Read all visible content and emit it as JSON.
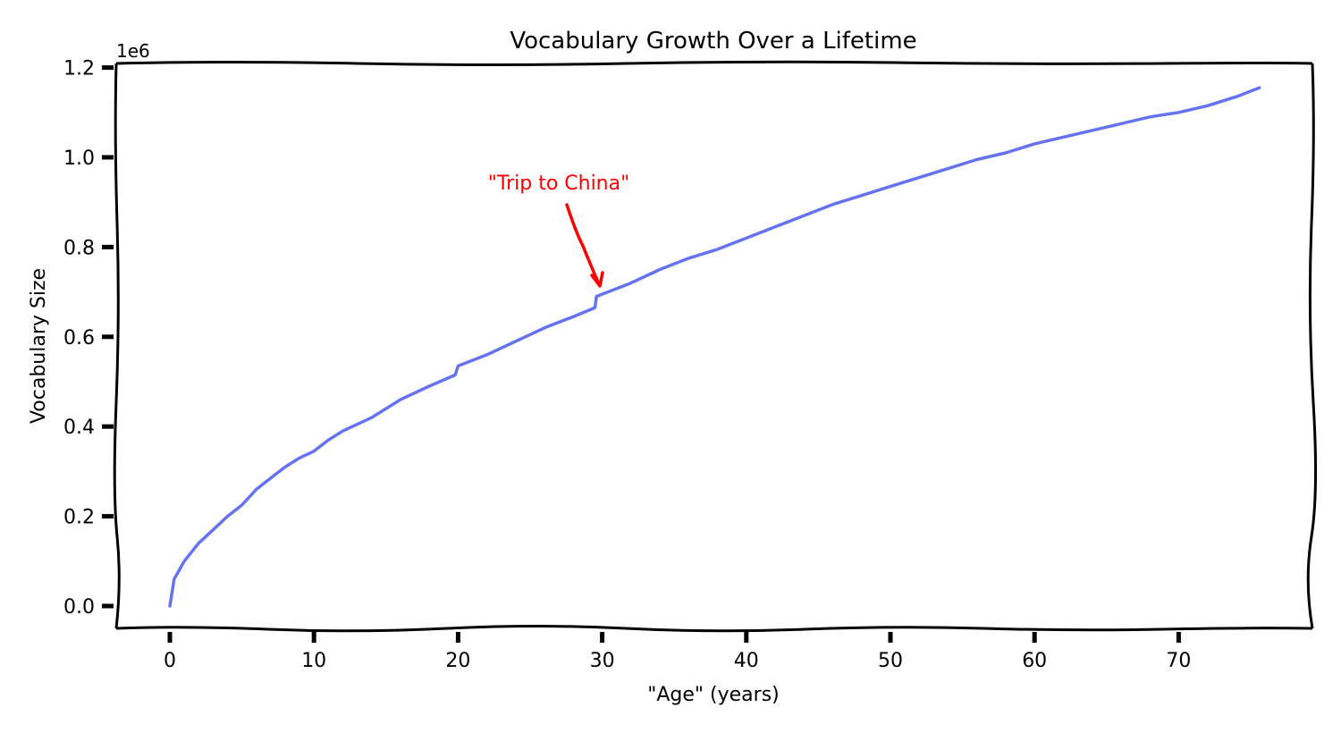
{
  "chart_data": {
    "type": "line",
    "title": "Vocabulary Growth Over a Lifetime",
    "xlabel": "\"Age\" (years)",
    "ylabel": "Vocabulary Size",
    "y_offset_label": "1e6",
    "xlim": [
      -3.6,
      79.5
    ],
    "ylim": [
      -0.05,
      1.2
    ],
    "x_ticks": [
      0,
      10,
      20,
      30,
      40,
      50,
      60,
      70
    ],
    "x_tick_labels": [
      "0",
      "10",
      "20",
      "30",
      "40",
      "50",
      "60",
      "70"
    ],
    "y_ticks": [
      0.0,
      0.2,
      0.4,
      0.6,
      0.8,
      1.0,
      1.2
    ],
    "y_tick_labels": [
      "0.0",
      "0.2",
      "0.4",
      "0.6",
      "0.8",
      "1.0",
      "1.2"
    ],
    "grid": false,
    "legend": null,
    "style": "xkcd",
    "series": [
      {
        "name": "vocabulary",
        "color": "#6673f0",
        "x": [
          0,
          0.3,
          1,
          2,
          3,
          4,
          5,
          6,
          7,
          8,
          9,
          10,
          11,
          12,
          14,
          16,
          18,
          19.8,
          20,
          22,
          24,
          26,
          28,
          29.5,
          29.6,
          32,
          34,
          36,
          38,
          40,
          42,
          44,
          46,
          48,
          50,
          52,
          54,
          56,
          58,
          60,
          62,
          64,
          66,
          68,
          70,
          72,
          74,
          75.6
        ],
        "values": [
          0.0,
          0.06,
          0.1,
          0.14,
          0.17,
          0.2,
          0.225,
          0.26,
          0.285,
          0.31,
          0.33,
          0.345,
          0.37,
          0.39,
          0.42,
          0.46,
          0.49,
          0.515,
          0.535,
          0.56,
          0.59,
          0.62,
          0.645,
          0.665,
          0.69,
          0.72,
          0.75,
          0.775,
          0.795,
          0.82,
          0.845,
          0.87,
          0.895,
          0.915,
          0.935,
          0.955,
          0.975,
          0.995,
          1.01,
          1.03,
          1.045,
          1.06,
          1.075,
          1.09,
          1.1,
          1.115,
          1.135,
          1.155
        ]
      }
    ],
    "annotations": [
      {
        "text": "\"Trip to China\"",
        "color": "#ff0000",
        "xy": [
          30,
          0.71
        ],
        "xytext": [
          21.5,
          0.94
        ]
      }
    ]
  }
}
